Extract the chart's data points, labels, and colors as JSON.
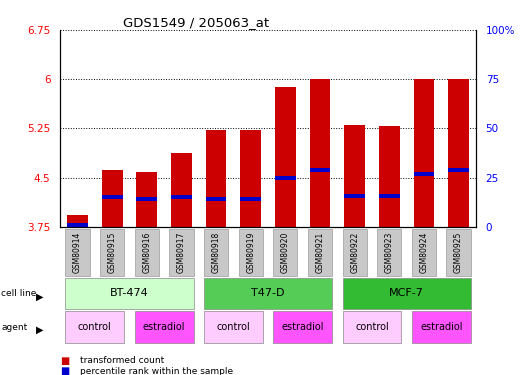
{
  "title": "GDS1549 / 205063_at",
  "samples": [
    "GSM80914",
    "GSM80915",
    "GSM80916",
    "GSM80917",
    "GSM80918",
    "GSM80919",
    "GSM80920",
    "GSM80921",
    "GSM80922",
    "GSM80923",
    "GSM80924",
    "GSM80925"
  ],
  "bar_values": [
    3.93,
    4.62,
    4.59,
    4.87,
    5.22,
    5.22,
    5.88,
    6.0,
    5.3,
    5.28,
    6.0,
    6.0
  ],
  "percentile_values": [
    3.78,
    4.2,
    4.17,
    4.2,
    4.17,
    4.17,
    4.5,
    4.62,
    4.22,
    4.22,
    4.55,
    4.62
  ],
  "ylim_left": [
    3.75,
    6.75
  ],
  "ylim_right": [
    0,
    100
  ],
  "yticks_left": [
    3.75,
    4.5,
    5.25,
    6.0,
    6.75
  ],
  "ytick_labels_left": [
    "3.75",
    "4.5",
    "5.25",
    "6",
    "6.75"
  ],
  "yticks_right": [
    0,
    25,
    50,
    75,
    100
  ],
  "ytick_labels_right": [
    "0",
    "25",
    "50",
    "75",
    "100%"
  ],
  "bar_color": "#cc0000",
  "blue_color": "#0000cc",
  "cell_lines": [
    {
      "label": "BT-474",
      "start": 0,
      "end": 3,
      "color": "#ccffcc"
    },
    {
      "label": "T47-D",
      "start": 4,
      "end": 7,
      "color": "#55cc55"
    },
    {
      "label": "MCF-7",
      "start": 8,
      "end": 11,
      "color": "#33bb33"
    }
  ],
  "agents": [
    {
      "label": "control",
      "start": 0,
      "end": 1,
      "color": "#ffccff"
    },
    {
      "label": "estradiol",
      "start": 2,
      "end": 3,
      "color": "#ff55ff"
    },
    {
      "label": "control",
      "start": 4,
      "end": 5,
      "color": "#ffccff"
    },
    {
      "label": "estradiol",
      "start": 6,
      "end": 7,
      "color": "#ff55ff"
    },
    {
      "label": "control",
      "start": 8,
      "end": 9,
      "color": "#ffccff"
    },
    {
      "label": "estradiol",
      "start": 10,
      "end": 11,
      "color": "#ff55ff"
    }
  ],
  "legend_items": [
    {
      "label": "transformed count",
      "color": "#cc0000"
    },
    {
      "label": "percentile rank within the sample",
      "color": "#0000cc"
    }
  ],
  "bar_width": 0.6,
  "xlim": [
    -0.5,
    11.5
  ]
}
